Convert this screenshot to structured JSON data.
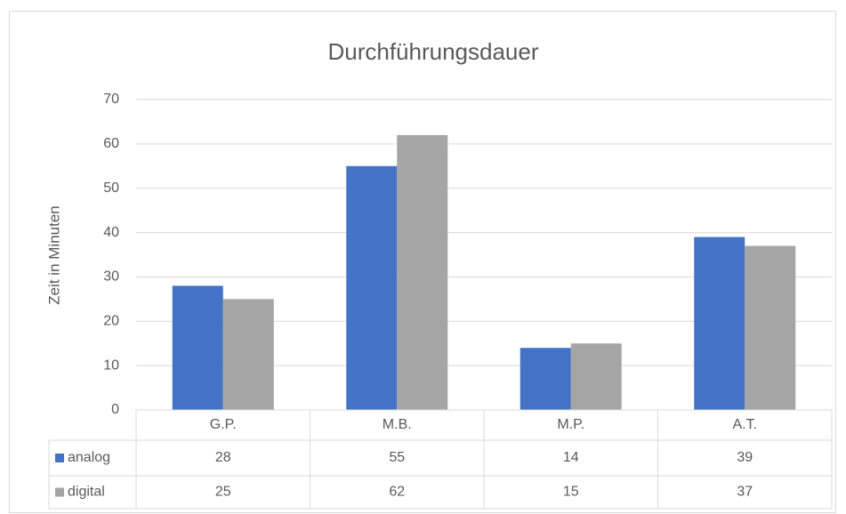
{
  "chart_data": {
    "type": "bar",
    "title": "Durchführungsdauer",
    "y_label": "Zeit in Minuten",
    "categories": [
      "G.P.",
      "M.B.",
      "M.P.",
      "A.T."
    ],
    "series": [
      {
        "name": "analog",
        "color": "#4472c4",
        "values": [
          28,
          55,
          14,
          39
        ]
      },
      {
        "name": "digital",
        "color": "#a5a5a5",
        "values": [
          25,
          62,
          15,
          37
        ]
      }
    ],
    "ylim": [
      0,
      70
    ],
    "yticks": [
      0,
      10,
      20,
      30,
      40,
      50,
      60,
      70
    ],
    "grid": true,
    "data_table": true
  }
}
